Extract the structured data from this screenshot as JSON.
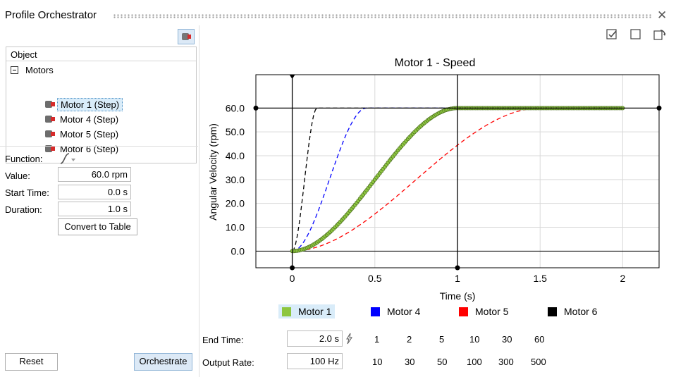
{
  "window": {
    "title": "Profile Orchestrator",
    "close_icon": "close-icon"
  },
  "tree": {
    "header": "Object",
    "root": "Motors",
    "items": [
      {
        "label": "Motor 1  (Step)",
        "selected": true
      },
      {
        "label": "Motor 4  (Step)",
        "selected": false
      },
      {
        "label": "Motor 5  (Step)",
        "selected": false
      },
      {
        "label": "Motor 6  (Step)",
        "selected": false
      }
    ]
  },
  "props": {
    "function_label": "Function:",
    "value_label": "Value:",
    "value": "60.0 rpm",
    "start_label": "Start Time:",
    "start": "0.0 s",
    "duration_label": "Duration:",
    "duration": "1.0 s",
    "convert_button": "Convert to Table"
  },
  "buttons": {
    "reset": "Reset",
    "orchestrate": "Orchestrate"
  },
  "bottom": {
    "end_time_label": "End Time:",
    "end_time": "2.0 s",
    "output_rate_label": "Output Rate:",
    "output_rate": "100 Hz",
    "end_time_presets": [
      "1",
      "2",
      "5",
      "10",
      "30",
      "60"
    ],
    "output_rate_presets": [
      "10",
      "30",
      "50",
      "100",
      "300",
      "500"
    ]
  },
  "legend": [
    {
      "label": "Motor 1",
      "color": "#8dc63f",
      "selected": true
    },
    {
      "label": "Motor 4",
      "color": "#0000ff",
      "selected": false
    },
    {
      "label": "Motor 5",
      "color": "#ff0000",
      "selected": false
    },
    {
      "label": "Motor 6",
      "color": "#000000",
      "selected": false
    }
  ],
  "chart_data": {
    "type": "line",
    "title": "Motor 1 - Speed",
    "xlabel": "Time (s)",
    "ylabel": "Angular Velocity (rpm)",
    "xlim": [
      -0.22,
      2.22
    ],
    "ylim": [
      -7,
      74
    ],
    "xticks": [
      "0",
      "0.5",
      "1",
      "1.5",
      "2"
    ],
    "yticks": [
      "0.0",
      "10.0",
      "20.0",
      "30.0",
      "40.0",
      "50.0",
      "60.0"
    ],
    "grid": true,
    "series": [
      {
        "name": "Motor 1",
        "color": "#8dc63f",
        "style": "markers",
        "start": 0.0,
        "duration": 1.0,
        "value": 60,
        "end": 2.0
      },
      {
        "name": "Motor 4",
        "color": "#0000ff",
        "style": "dashed",
        "start": 0.0,
        "duration": 0.45,
        "value": 60,
        "end": 2.0
      },
      {
        "name": "Motor 5",
        "color": "#ff0000",
        "style": "dashed",
        "start": 0.0,
        "duration": 1.5,
        "value": 60,
        "end": 2.0
      },
      {
        "name": "Motor 6",
        "color": "#000000",
        "style": "dashed",
        "start": 0.0,
        "duration": 0.15,
        "value": 60,
        "end": 2.0
      }
    ]
  }
}
